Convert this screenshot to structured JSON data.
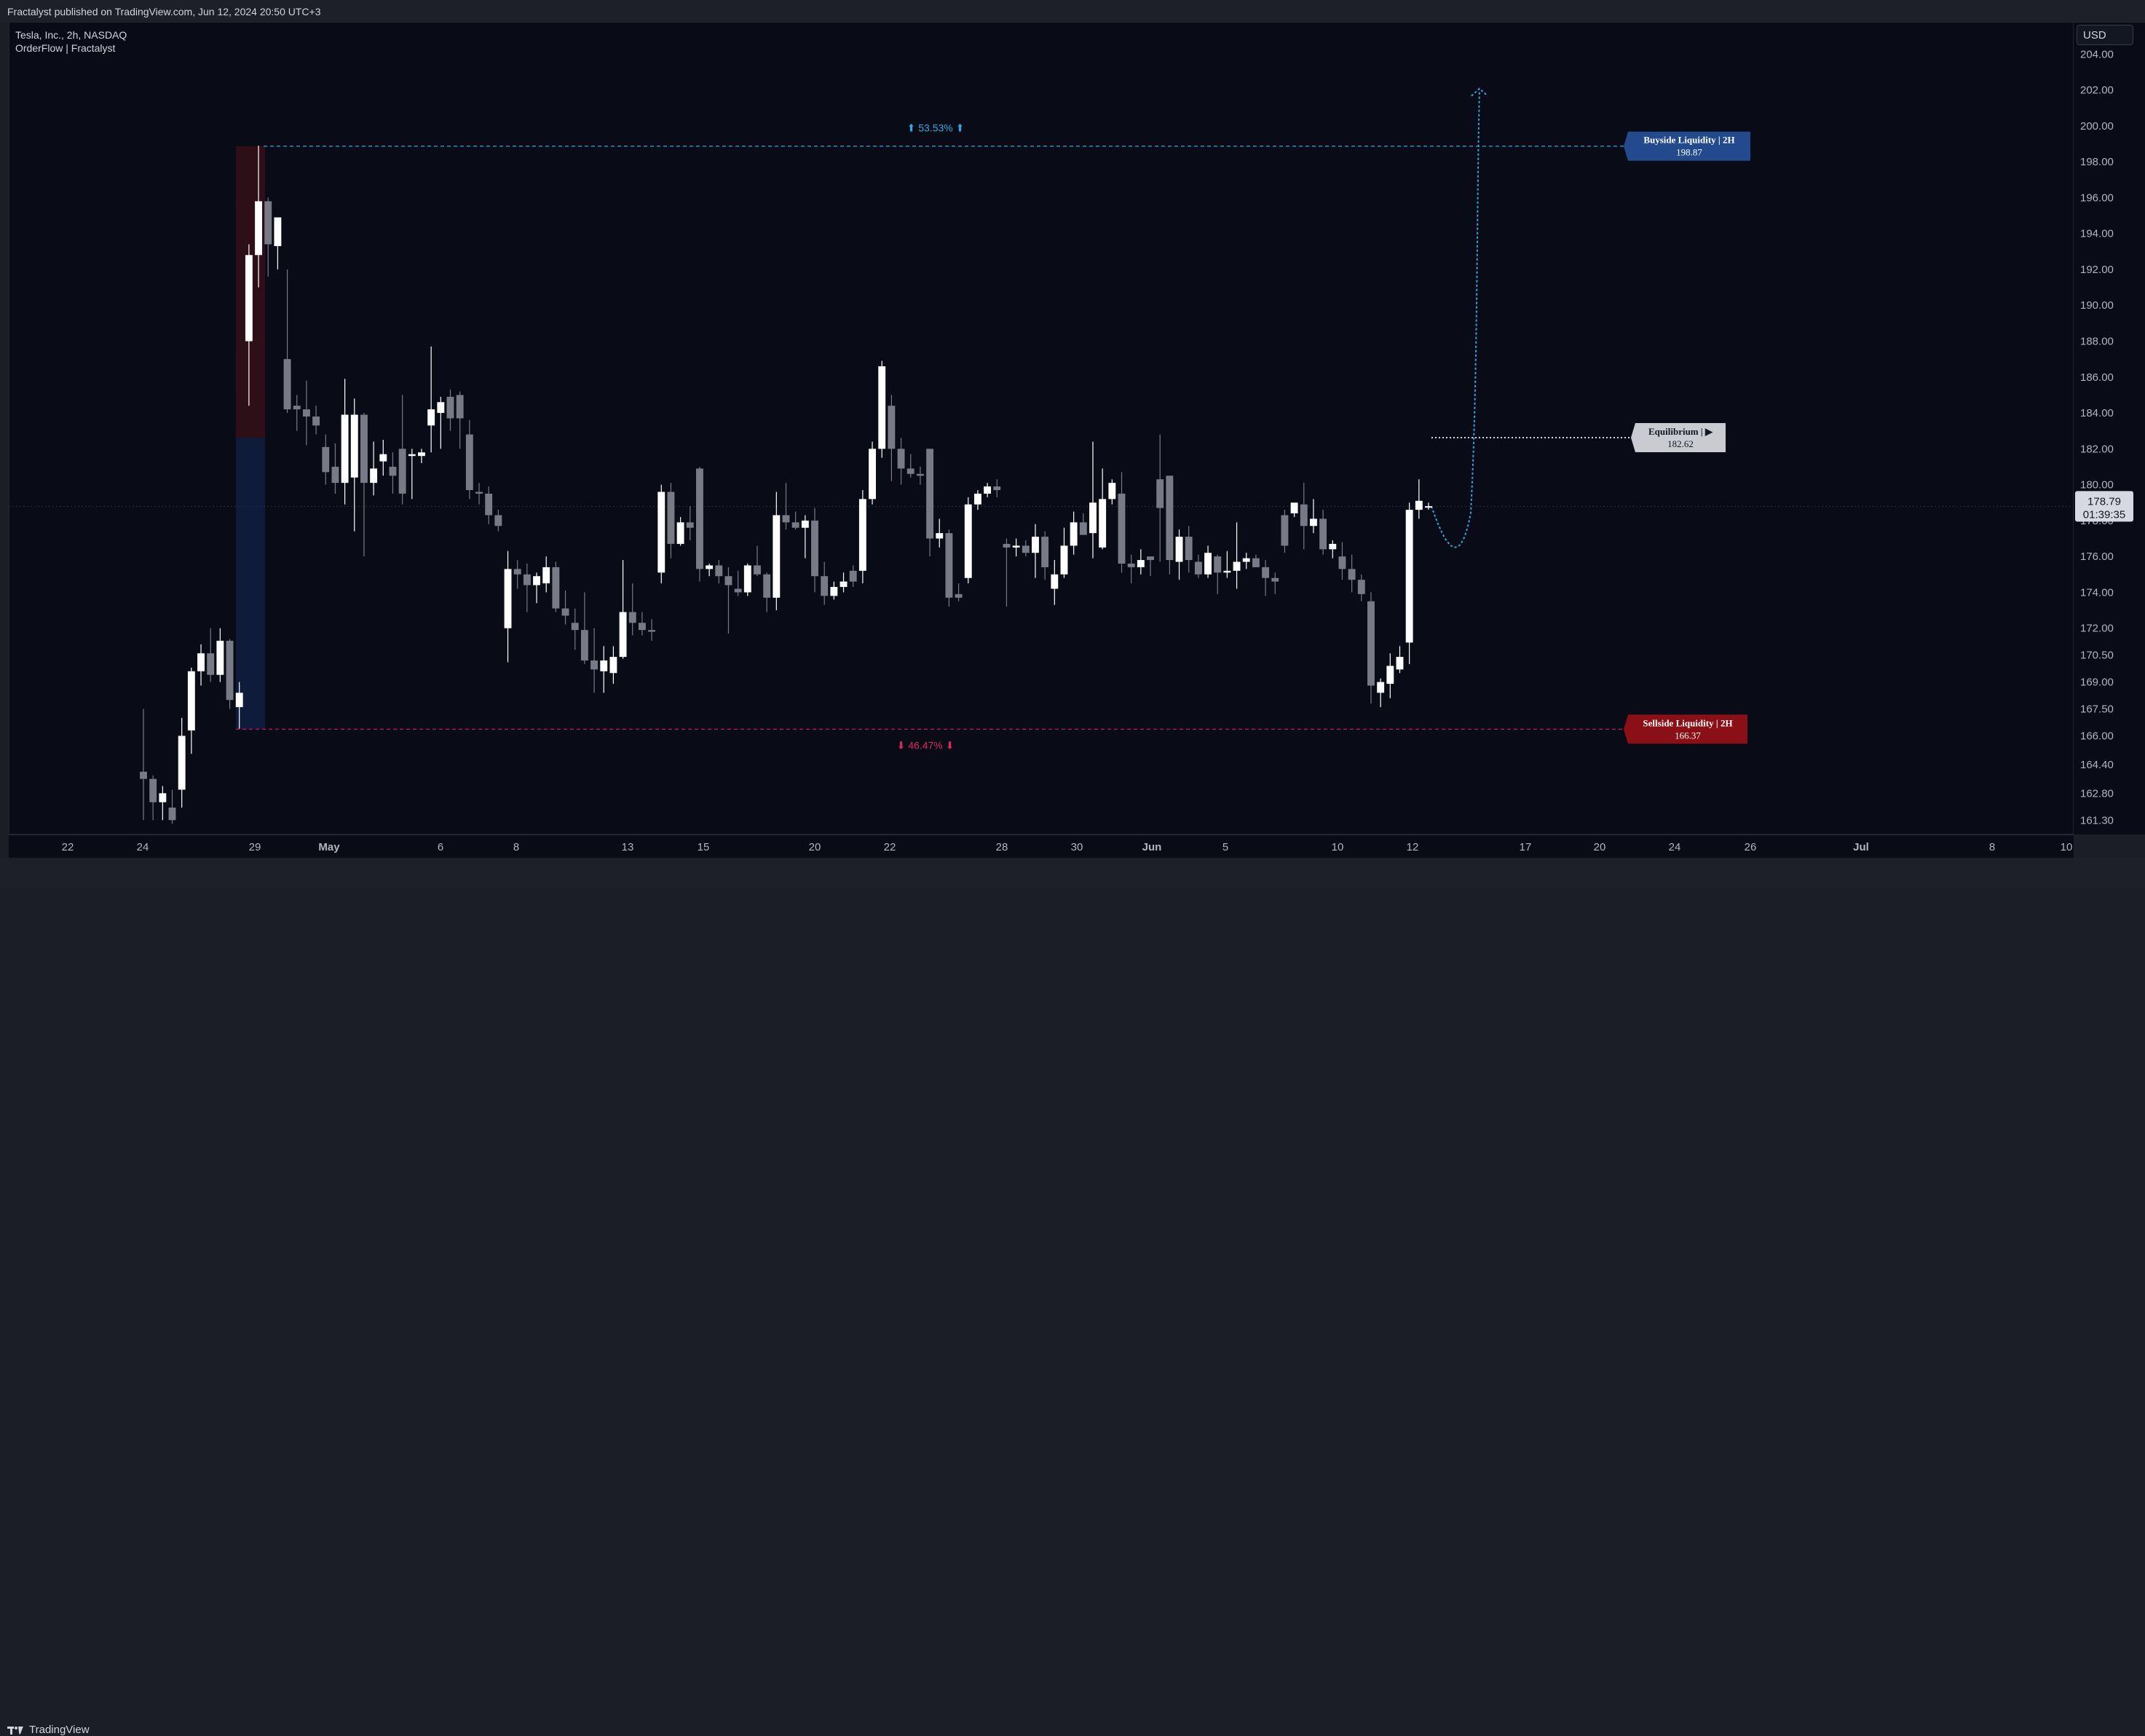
{
  "header": {
    "published": "Fractalyst published on TradingView.com, Jun 12, 2024 20:50 UTC+3"
  },
  "legend": {
    "symbol": "Tesla, Inc., 2h, NASDAQ",
    "indicator": "OrderFlow | Fractalyst"
  },
  "axis": {
    "currency": "USD",
    "last_price": "178.79",
    "countdown": "01:39:35"
  },
  "annotations": {
    "up_pct": "⬆ 53.53% ⬆",
    "down_pct": "⬇ 46.47% ⬇",
    "buyside_title": "Buyside  Liquidity  |  2H",
    "buyside_value": "198.87",
    "sellside_title": "Sellside  Liquidity  |  2H",
    "sellside_value": "166.37",
    "equilibrium_title": "Equilibrium  |  ▶",
    "equilibrium_value": "182.62"
  },
  "footer": {
    "brand": "TradingView"
  },
  "colors": {
    "background": "#090c16",
    "buyside": "#234a8c",
    "sellside": "#8a0f16",
    "up_candle": "#ffffff",
    "down_candle": "#787b86",
    "up_text": "#2fa8e0",
    "down_text": "#e0245e"
  },
  "chart_data": {
    "type": "candlestick",
    "symbol": "TSLA",
    "interval": "2h",
    "ylim": [
      160.5,
      205.8
    ],
    "y_ticks": [
      "204.00",
      "202.00",
      "200.00",
      "198.00",
      "196.00",
      "194.00",
      "192.00",
      "190.00",
      "188.00",
      "186.00",
      "184.00",
      "182.00",
      "180.00",
      "178.00",
      "176.00",
      "174.00",
      "172.00",
      "170.50",
      "169.00",
      "167.50",
      "166.00",
      "164.40",
      "162.80",
      "161.30"
    ],
    "x_labels": [
      "22",
      "24",
      "29",
      "May",
      "6",
      "8",
      "13",
      "15",
      "20",
      "22",
      "28",
      "30",
      "Jun",
      "5",
      "10",
      "12",
      "17",
      "20",
      "24",
      "26",
      "Jul",
      "8",
      "10"
    ],
    "levels": {
      "buyside_liquidity": 198.87,
      "sellside_liquidity": 166.37,
      "equilibrium": 182.62,
      "current_price": 178.79
    },
    "range_move_pct": {
      "up": 53.53,
      "down": 46.47
    },
    "ohlc": [
      [
        164.0,
        167.5,
        161.3,
        163.6
      ],
      [
        163.6,
        163.8,
        161.3,
        162.3
      ],
      [
        162.3,
        163.2,
        161.3,
        162.8
      ],
      [
        162.0,
        163.0,
        161.1,
        161.3
      ],
      [
        163.0,
        167.0,
        162.0,
        166.0
      ],
      [
        166.3,
        169.8,
        165.0,
        169.6
      ],
      [
        169.6,
        171.1,
        168.8,
        170.6
      ],
      [
        170.6,
        172.0,
        169.0,
        169.4
      ],
      [
        169.4,
        172.0,
        169.0,
        171.3
      ],
      [
        171.3,
        171.4,
        167.5,
        168.0
      ],
      [
        167.6,
        169.0,
        166.4,
        168.4
      ],
      [
        188.0,
        193.4,
        184.4,
        192.8
      ],
      [
        192.8,
        198.9,
        191.0,
        195.8
      ],
      [
        195.8,
        196.0,
        191.6,
        193.4
      ],
      [
        193.3,
        194.9,
        192.0,
        194.9
      ],
      [
        187.0,
        192.0,
        184.0,
        184.2
      ],
      [
        184.4,
        185.0,
        183.0,
        184.2
      ],
      [
        184.2,
        185.8,
        182.2,
        183.8
      ],
      [
        183.8,
        184.4,
        182.8,
        183.3
      ],
      [
        182.1,
        182.8,
        180.0,
        180.7
      ],
      [
        181.0,
        182.3,
        179.5,
        180.1
      ],
      [
        180.1,
        185.9,
        178.9,
        183.9
      ],
      [
        180.4,
        184.8,
        177.4,
        183.9
      ],
      [
        183.9,
        184.0,
        176.0,
        180.1
      ],
      [
        180.1,
        182.4,
        179.4,
        180.9
      ],
      [
        181.3,
        182.5,
        180.5,
        181.7
      ],
      [
        181.0,
        181.8,
        179.5,
        180.5
      ],
      [
        182.0,
        185.0,
        178.9,
        179.5
      ],
      [
        181.6,
        182.0,
        179.2,
        181.7
      ],
      [
        181.6,
        182.0,
        181.2,
        181.8
      ],
      [
        183.3,
        187.7,
        181.8,
        184.2
      ],
      [
        184.0,
        184.9,
        182.0,
        184.6
      ],
      [
        184.9,
        185.3,
        183.0,
        183.7
      ],
      [
        185.0,
        185.2,
        182.0,
        183.7
      ],
      [
        182.8,
        183.6,
        179.2,
        179.7
      ],
      [
        179.6,
        180.1,
        178.9,
        179.5
      ],
      [
        179.5,
        179.9,
        177.8,
        178.3
      ],
      [
        178.3,
        178.6,
        177.4,
        177.7
      ],
      [
        172.0,
        176.3,
        170.1,
        175.3
      ],
      [
        175.3,
        175.8,
        174.2,
        175.0
      ],
      [
        175.0,
        175.6,
        172.9,
        174.4
      ],
      [
        174.4,
        175.1,
        173.4,
        174.9
      ],
      [
        174.5,
        176.0,
        174.0,
        175.4
      ],
      [
        175.4,
        175.7,
        172.9,
        173.1
      ],
      [
        173.1,
        174.1,
        172.2,
        172.7
      ],
      [
        172.3,
        173.1,
        170.8,
        171.9
      ],
      [
        171.9,
        174.0,
        170.0,
        170.2
      ],
      [
        170.2,
        172.0,
        168.4,
        169.7
      ],
      [
        169.6,
        171.0,
        168.4,
        170.2
      ],
      [
        169.5,
        171.0,
        168.9,
        170.4
      ],
      [
        170.4,
        175.8,
        170.3,
        172.9
      ],
      [
        172.9,
        174.5,
        171.6,
        172.3
      ],
      [
        172.3,
        172.9,
        171.6,
        171.9
      ],
      [
        171.9,
        172.5,
        171.3,
        171.8
      ],
      [
        175.1,
        180.0,
        174.5,
        179.6
      ],
      [
        179.6,
        180.1,
        175.9,
        176.7
      ],
      [
        176.7,
        178.2,
        176.6,
        177.9
      ],
      [
        177.9,
        178.8,
        176.9,
        177.6
      ],
      [
        180.9,
        181.0,
        174.6,
        175.3
      ],
      [
        175.3,
        175.6,
        174.9,
        175.5
      ],
      [
        175.5,
        175.8,
        174.5,
        174.9
      ],
      [
        174.9,
        175.4,
        171.7,
        174.4
      ],
      [
        174.2,
        175.2,
        173.8,
        174.0
      ],
      [
        174.0,
        175.6,
        173.8,
        175.5
      ],
      [
        175.5,
        176.6,
        174.9,
        175.0
      ],
      [
        175.0,
        175.1,
        172.9,
        173.7
      ],
      [
        173.7,
        179.6,
        173.0,
        178.3
      ],
      [
        178.3,
        180.1,
        177.5,
        177.9
      ],
      [
        177.9,
        178.5,
        177.5,
        177.6
      ],
      [
        177.6,
        178.3,
        175.9,
        178.0
      ],
      [
        178.0,
        178.7,
        174.0,
        174.9
      ],
      [
        174.9,
        175.7,
        173.3,
        173.8
      ],
      [
        173.8,
        174.6,
        173.6,
        174.3
      ],
      [
        174.3,
        175.1,
        174.0,
        174.6
      ],
      [
        175.2,
        175.5,
        174.3,
        174.6
      ],
      [
        175.2,
        179.7,
        174.5,
        179.2
      ],
      [
        179.2,
        182.4,
        178.9,
        182.0
      ],
      [
        182.0,
        186.9,
        181.5,
        186.6
      ],
      [
        184.4,
        185.0,
        180.2,
        182.0
      ],
      [
        182.0,
        182.6,
        180.0,
        180.9
      ],
      [
        180.9,
        181.7,
        180.4,
        180.6
      ],
      [
        180.6,
        181.0,
        180.0,
        180.5
      ],
      [
        182.0,
        182.0,
        176.0,
        177.0
      ],
      [
        177.0,
        178.1,
        176.5,
        177.3
      ],
      [
        177.3,
        177.5,
        173.2,
        173.7
      ],
      [
        173.9,
        174.5,
        173.5,
        173.7
      ],
      [
        174.8,
        179.3,
        174.5,
        178.9
      ],
      [
        178.9,
        179.7,
        178.6,
        179.5
      ],
      [
        179.5,
        180.1,
        179.3,
        179.9
      ],
      [
        179.9,
        180.3,
        179.3,
        179.7
      ],
      [
        176.7,
        177.0,
        173.2,
        176.5
      ],
      [
        176.5,
        177.0,
        176.0,
        176.6
      ],
      [
        176.6,
        176.9,
        176.0,
        176.2
      ],
      [
        176.2,
        177.8,
        174.8,
        177.1
      ],
      [
        177.1,
        177.4,
        174.7,
        175.4
      ],
      [
        174.2,
        175.8,
        173.3,
        175.0
      ],
      [
        175.0,
        177.6,
        174.8,
        176.6
      ],
      [
        176.6,
        178.5,
        176.1,
        177.9
      ],
      [
        177.9,
        178.4,
        177.3,
        177.2
      ],
      [
        177.3,
        182.4,
        175.9,
        179.0
      ],
      [
        176.5,
        180.9,
        176.4,
        179.2
      ],
      [
        179.2,
        180.3,
        178.9,
        180.1
      ],
      [
        179.5,
        180.7,
        175.1,
        175.6
      ],
      [
        175.6,
        176.1,
        174.5,
        175.4
      ],
      [
        175.4,
        176.4,
        175.0,
        175.8
      ],
      [
        176.0,
        176.0,
        174.9,
        175.8
      ],
      [
        180.3,
        182.8,
        175.7,
        178.7
      ],
      [
        180.5,
        180.5,
        175.0,
        175.8
      ],
      [
        175.7,
        177.5,
        174.7,
        177.1
      ],
      [
        177.1,
        177.7,
        175.1,
        175.8
      ],
      [
        175.7,
        176.1,
        174.8,
        175.0
      ],
      [
        175.0,
        176.6,
        174.8,
        176.2
      ],
      [
        176.0,
        176.1,
        173.9,
        175.1
      ],
      [
        175.1,
        176.3,
        174.8,
        175.2
      ],
      [
        175.2,
        177.9,
        174.2,
        175.7
      ],
      [
        175.7,
        176.2,
        175.3,
        175.9
      ],
      [
        175.9,
        176.1,
        175.5,
        175.4
      ],
      [
        175.4,
        175.8,
        173.8,
        174.8
      ],
      [
        174.8,
        175.1,
        173.9,
        174.6
      ],
      [
        178.3,
        178.6,
        176.2,
        176.6
      ],
      [
        178.4,
        178.9,
        178.2,
        179.0
      ],
      [
        178.9,
        180.1,
        176.4,
        177.7
      ],
      [
        177.7,
        179.2,
        177.3,
        178.1
      ],
      [
        178.1,
        178.6,
        176.1,
        176.4
      ],
      [
        176.4,
        176.9,
        175.9,
        176.7
      ],
      [
        176.0,
        176.8,
        174.7,
        175.3
      ],
      [
        175.3,
        176.1,
        174.0,
        174.7
      ],
      [
        174.7,
        175.0,
        173.5,
        173.9
      ],
      [
        173.5,
        174.0,
        167.8,
        168.8
      ],
      [
        168.4,
        169.2,
        167.6,
        169.0
      ],
      [
        168.9,
        170.6,
        168.1,
        169.9
      ],
      [
        169.7,
        171.0,
        169.5,
        170.4
      ],
      [
        171.2,
        179.0,
        170.0,
        178.6
      ],
      [
        178.6,
        180.3,
        178.1,
        179.1
      ],
      [
        178.8,
        179.0,
        178.6,
        178.8
      ]
    ]
  }
}
